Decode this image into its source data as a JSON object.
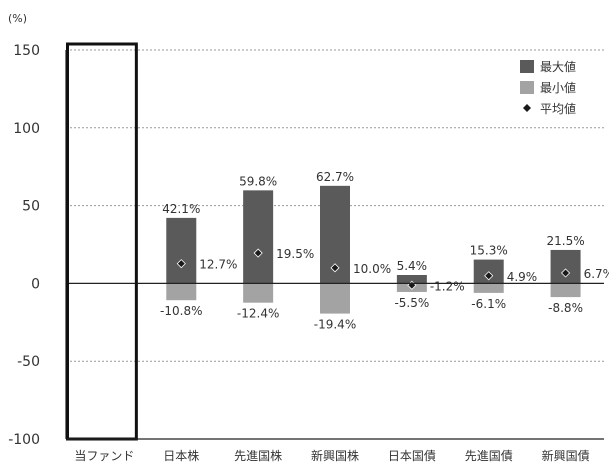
{
  "chart_data": {
    "type": "bar",
    "unit_label": "(%)",
    "yticks": [
      "150",
      "100",
      "50",
      "0",
      "-50",
      "-100"
    ],
    "ylim": [
      -100,
      150
    ],
    "grid": true,
    "legend_position": "top-right",
    "categories": [
      "当ファンド",
      "日本株",
      "先進国株",
      "新興国株",
      "日本国債",
      "先進国債",
      "新興国債"
    ],
    "series": [
      {
        "name": "最大値",
        "values": [
          null,
          42.1,
          59.8,
          62.7,
          5.4,
          15.3,
          21.5
        ],
        "labels": [
          "",
          "42.1%",
          "59.8%",
          "62.7%",
          "5.4%",
          "15.3%",
          "21.5%"
        ]
      },
      {
        "name": "最小値",
        "values": [
          null,
          -10.8,
          -12.4,
          -19.4,
          -5.5,
          -6.1,
          -8.8
        ],
        "labels": [
          "",
          "-10.8%",
          "-12.4%",
          "-19.4%",
          "-5.5%",
          "-6.1%",
          "-8.8%"
        ]
      },
      {
        "name": "平均値",
        "values": [
          null,
          12.7,
          19.5,
          10.0,
          -1.2,
          4.9,
          6.7
        ],
        "labels": [
          "",
          "12.7%",
          "19.5%",
          "10.0%",
          "-1.2%",
          "4.9%",
          "6.7%"
        ]
      }
    ],
    "highlighted_category": "当ファンド",
    "colors": {
      "max": "#5a5a5a",
      "min": "#a3a3a3",
      "avg": "#1a1a1a",
      "axis": "#222222",
      "grid": "#999999"
    }
  }
}
